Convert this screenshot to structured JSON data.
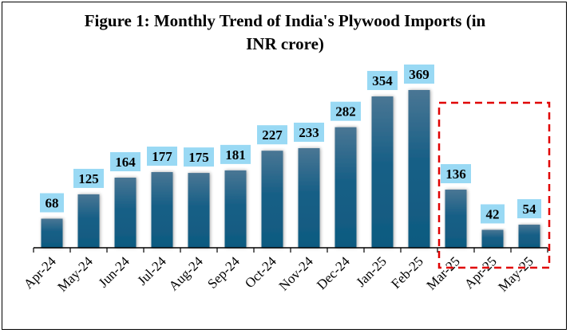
{
  "chart_data": {
    "type": "bar",
    "title": "Figure 1: Monthly Trend of India's Plywood Imports (in INR crore)",
    "title_lines": [
      "Figure 1: Monthly Trend of India's Plywood Imports (in",
      "INR crore)"
    ],
    "categories": [
      "Apr-24",
      "May-24",
      "Jun-24",
      "Jul-24",
      "Aug-24",
      "Sep-24",
      "Oct-24",
      "Nov-24",
      "Dec-24",
      "Jan-25",
      "Feb-25",
      "Mar-25",
      "Apr-25",
      "May-25"
    ],
    "values": [
      68,
      125,
      164,
      177,
      175,
      181,
      227,
      233,
      282,
      354,
      369,
      136,
      42,
      54
    ],
    "xlabel": "",
    "ylabel": "",
    "ylim": [
      0,
      369
    ],
    "grid": false,
    "legend": "none",
    "highlight": {
      "categories": [
        "Mar-25",
        "Apr-25",
        "May-25"
      ],
      "style": "dashed-box",
      "color": "#e00000"
    },
    "colors": {
      "bar_top": "#4a7694",
      "bar_bottom": "#0f5a80",
      "label_bg": "#99d9f4",
      "highlight": "#e00000"
    }
  }
}
